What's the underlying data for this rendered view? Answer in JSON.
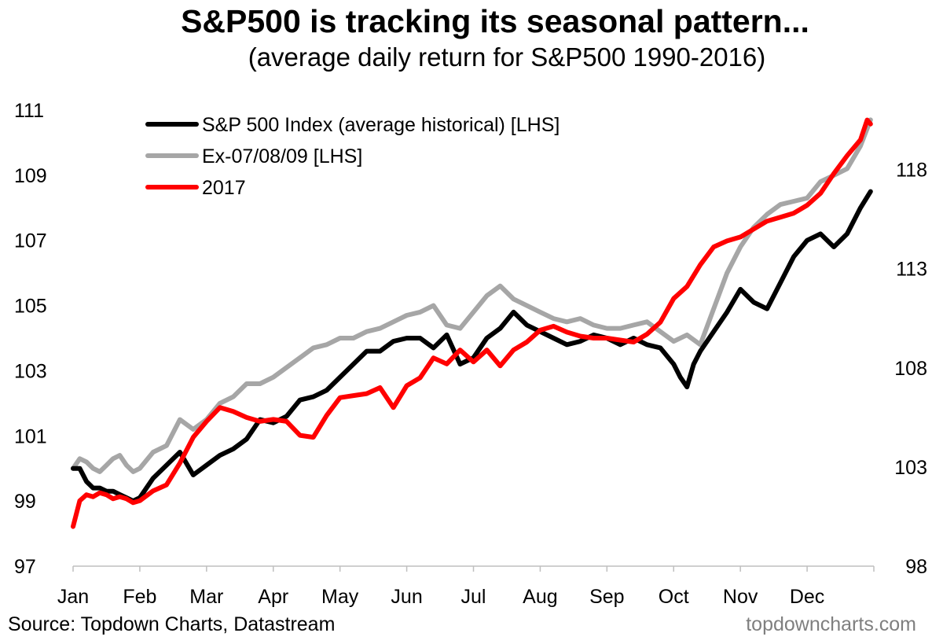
{
  "header": {
    "title": "S&P500 is tracking its seasonal pattern...",
    "subtitle": "(average daily return for S&P500 1990-2016)"
  },
  "footer": {
    "source": "Source: Topdown Charts, Datastream",
    "brand": "topdowncharts.com"
  },
  "colors": {
    "sp500": "#000000",
    "ex_crisis": "#a6a6a6",
    "y2017": "#ff0000"
  },
  "chart_data": {
    "type": "line",
    "title": "S&P500 is tracking its seasonal pattern...",
    "subtitle": "(average daily return for S&P500 1990-2016)",
    "x_categories": [
      "Jan",
      "Feb",
      "Mar",
      "Apr",
      "May",
      "Jun",
      "Jul",
      "Aug",
      "Sep",
      "Oct",
      "Nov",
      "Dec"
    ],
    "left_axis": {
      "ylim": [
        97,
        111
      ],
      "ticks": [
        97,
        99,
        101,
        103,
        105,
        107,
        109,
        111
      ]
    },
    "right_axis": {
      "ylim": [
        98,
        121
      ],
      "ticks": [
        98,
        103,
        108,
        113,
        118
      ]
    },
    "grid": false,
    "legend_position": "top-left",
    "series": [
      {
        "name": "S&P 500 Index (average historical) [LHS]",
        "axis": "left",
        "color": "#000000",
        "x": [
          0.0,
          0.1,
          0.2,
          0.3,
          0.4,
          0.5,
          0.6,
          0.7,
          0.8,
          0.9,
          1.0,
          1.2,
          1.4,
          1.6,
          1.8,
          2.0,
          2.2,
          2.4,
          2.6,
          2.8,
          3.0,
          3.2,
          3.4,
          3.6,
          3.8,
          4.0,
          4.2,
          4.4,
          4.6,
          4.8,
          5.0,
          5.2,
          5.4,
          5.6,
          5.8,
          6.0,
          6.2,
          6.4,
          6.6,
          6.8,
          7.0,
          7.2,
          7.4,
          7.6,
          7.8,
          8.0,
          8.2,
          8.4,
          8.6,
          8.8,
          9.0,
          9.1,
          9.2,
          9.3,
          9.4,
          9.6,
          9.8,
          10.0,
          10.2,
          10.4,
          10.6,
          10.8,
          11.0,
          11.2,
          11.4,
          11.6,
          11.8,
          11.95
        ],
        "values": [
          100.0,
          100.0,
          99.6,
          99.4,
          99.4,
          99.3,
          99.3,
          99.2,
          99.1,
          99.0,
          99.1,
          99.7,
          100.1,
          100.5,
          99.8,
          100.1,
          100.4,
          100.6,
          100.9,
          101.5,
          101.4,
          101.6,
          102.1,
          102.2,
          102.4,
          102.8,
          103.2,
          103.6,
          103.6,
          103.9,
          104.0,
          104.0,
          103.7,
          104.1,
          103.2,
          103.4,
          104.0,
          104.3,
          104.8,
          104.4,
          104.2,
          104.0,
          103.8,
          103.9,
          104.1,
          104.0,
          103.8,
          104.0,
          103.8,
          103.7,
          103.2,
          102.8,
          102.5,
          103.2,
          103.6,
          104.2,
          104.8,
          105.5,
          105.1,
          104.9,
          105.7,
          106.5,
          107.0,
          107.2,
          106.8,
          107.2,
          108.0,
          108.5
        ]
      },
      {
        "name": "Ex-07/08/09 [LHS]",
        "axis": "left",
        "color": "#a6a6a6",
        "x": [
          0.0,
          0.1,
          0.2,
          0.3,
          0.4,
          0.5,
          0.6,
          0.7,
          0.8,
          0.9,
          1.0,
          1.2,
          1.4,
          1.6,
          1.8,
          2.0,
          2.2,
          2.4,
          2.6,
          2.8,
          3.0,
          3.2,
          3.4,
          3.6,
          3.8,
          4.0,
          4.2,
          4.4,
          4.6,
          4.8,
          5.0,
          5.2,
          5.4,
          5.6,
          5.8,
          6.0,
          6.2,
          6.4,
          6.6,
          6.8,
          7.0,
          7.2,
          7.4,
          7.6,
          7.8,
          8.0,
          8.2,
          8.4,
          8.6,
          8.8,
          9.0,
          9.2,
          9.4,
          9.6,
          9.8,
          10.0,
          10.2,
          10.4,
          10.6,
          10.8,
          11.0,
          11.2,
          11.4,
          11.6,
          11.8,
          11.95
        ],
        "values": [
          100.0,
          100.3,
          100.2,
          100.0,
          99.9,
          100.1,
          100.3,
          100.4,
          100.1,
          99.9,
          100.0,
          100.5,
          100.7,
          101.5,
          101.2,
          101.5,
          102.0,
          102.2,
          102.6,
          102.6,
          102.8,
          103.1,
          103.4,
          103.7,
          103.8,
          104.0,
          104.0,
          104.2,
          104.3,
          104.5,
          104.7,
          104.8,
          105.0,
          104.4,
          104.3,
          104.8,
          105.3,
          105.6,
          105.2,
          105.0,
          104.8,
          104.6,
          104.5,
          104.6,
          104.4,
          104.3,
          104.3,
          104.4,
          104.5,
          104.2,
          103.9,
          104.1,
          103.8,
          104.9,
          106.0,
          106.8,
          107.4,
          107.8,
          108.1,
          108.2,
          108.3,
          108.8,
          109.0,
          109.2,
          109.9,
          110.7
        ]
      },
      {
        "name": "2017",
        "axis": "right",
        "color": "#ff0000",
        "x": [
          0.0,
          0.1,
          0.2,
          0.3,
          0.4,
          0.5,
          0.6,
          0.7,
          0.8,
          0.9,
          1.0,
          1.2,
          1.4,
          1.6,
          1.8,
          2.0,
          2.2,
          2.4,
          2.6,
          2.8,
          3.0,
          3.2,
          3.4,
          3.6,
          3.8,
          4.0,
          4.2,
          4.4,
          4.6,
          4.8,
          5.0,
          5.2,
          5.4,
          5.6,
          5.8,
          6.0,
          6.2,
          6.4,
          6.6,
          6.8,
          7.0,
          7.2,
          7.4,
          7.6,
          7.8,
          8.0,
          8.2,
          8.4,
          8.6,
          8.8,
          9.0,
          9.2,
          9.4,
          9.6,
          9.8,
          10.0,
          10.2,
          10.4,
          10.6,
          10.8,
          11.0,
          11.2,
          11.4,
          11.6,
          11.8,
          11.9,
          11.95
        ],
        "values": [
          100.0,
          101.3,
          101.6,
          101.5,
          101.7,
          101.6,
          101.4,
          101.5,
          101.4,
          101.2,
          101.3,
          101.8,
          102.1,
          103.2,
          104.5,
          105.3,
          106.0,
          105.8,
          105.5,
          105.3,
          105.4,
          105.3,
          104.6,
          104.5,
          105.6,
          106.5,
          106.6,
          106.7,
          107.0,
          106.0,
          107.1,
          107.5,
          108.5,
          108.2,
          108.9,
          108.3,
          108.9,
          108.1,
          108.9,
          109.3,
          109.9,
          110.1,
          109.8,
          109.6,
          109.5,
          109.5,
          109.4,
          109.3,
          109.7,
          110.3,
          111.5,
          112.1,
          113.2,
          114.1,
          114.4,
          114.6,
          115.0,
          115.4,
          115.6,
          115.8,
          116.2,
          116.8,
          117.8,
          118.7,
          119.5,
          120.5,
          120.3
        ]
      }
    ]
  }
}
